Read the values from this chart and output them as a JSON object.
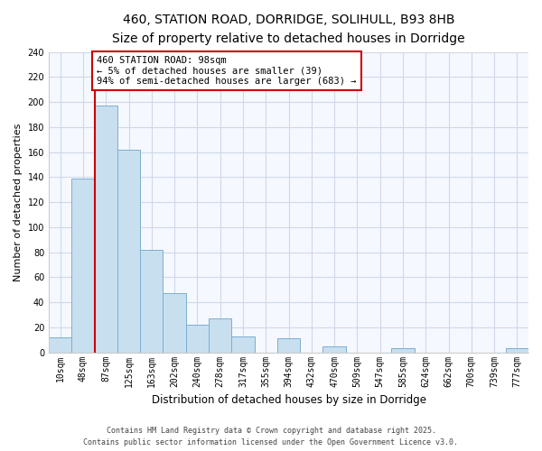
{
  "title_line1": "460, STATION ROAD, DORRIDGE, SOLIHULL, B93 8HB",
  "title_line2": "Size of property relative to detached houses in Dorridge",
  "xlabel": "Distribution of detached houses by size in Dorridge",
  "ylabel": "Number of detached properties",
  "bin_labels": [
    "10sqm",
    "48sqm",
    "87sqm",
    "125sqm",
    "163sqm",
    "202sqm",
    "240sqm",
    "278sqm",
    "317sqm",
    "355sqm",
    "394sqm",
    "432sqm",
    "470sqm",
    "509sqm",
    "547sqm",
    "585sqm",
    "624sqm",
    "662sqm",
    "700sqm",
    "739sqm",
    "777sqm"
  ],
  "bar_heights": [
    12,
    139,
    197,
    162,
    82,
    47,
    22,
    27,
    13,
    0,
    11,
    0,
    5,
    0,
    0,
    3,
    0,
    0,
    0,
    0,
    3
  ],
  "bar_color": "#c8dff0",
  "bar_edge_color": "#7ab0d0",
  "vline_color": "#cc0000",
  "vline_x": 1.5,
  "annotation_text": "460 STATION ROAD: 98sqm\n← 5% of detached houses are smaller (39)\n94% of semi-detached houses are larger (683) →",
  "annotation_bbox_facecolor": "#ffffff",
  "annotation_bbox_edgecolor": "#cc0000",
  "ylim": [
    0,
    240
  ],
  "yticks": [
    0,
    20,
    40,
    60,
    80,
    100,
    120,
    140,
    160,
    180,
    200,
    220,
    240
  ],
  "footer_line1": "Contains HM Land Registry data © Crown copyright and database right 2025.",
  "footer_line2": "Contains public sector information licensed under the Open Government Licence v3.0.",
  "bg_color": "#ffffff",
  "plot_bg_color": "#f5f8ff",
  "grid_color": "#d0d8e8",
  "title_fontsize": 10,
  "subtitle_fontsize": 8.5,
  "xlabel_fontsize": 8.5,
  "ylabel_fontsize": 8,
  "tick_fontsize": 7,
  "annot_fontsize": 7.5,
  "footer_fontsize": 6
}
